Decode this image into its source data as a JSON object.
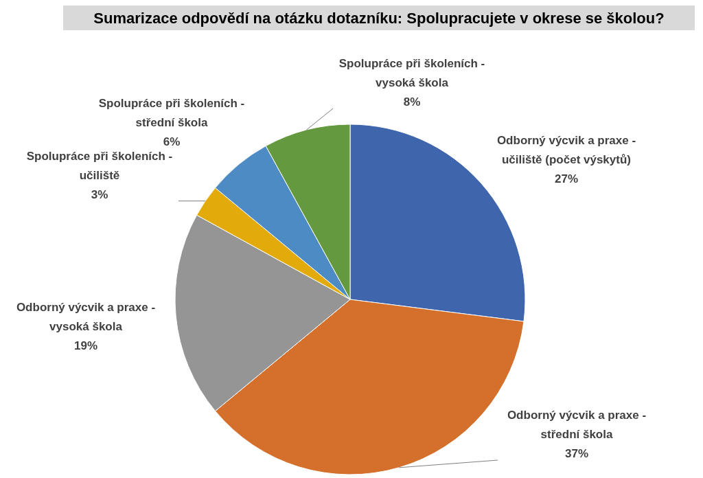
{
  "chart_data": {
    "type": "pie",
    "title": "Sumarizace odpovědí na otázku dotazníku: Spolupracujete v okrese se školou?",
    "categories": [
      "Odborný výcvik a praxe - učiliště (počet výskytů)",
      "Odborný výcvik a praxe - střední škola",
      "Odborný výcvik a praxe - vysoká škola",
      "Spolupráce při školeních - učiliště",
      "Spolupráce při školeních - střední škola",
      "Spolupráce při školeních - vysoká škola"
    ],
    "values": [
      27,
      37,
      19,
      3,
      6,
      8
    ],
    "value_labels": [
      "27%",
      "37%",
      "19%",
      "3%",
      "6%",
      "8%"
    ],
    "colors": [
      "#3f65ad",
      "#d4702b",
      "#959595",
      "#e3aa0c",
      "#4d8bc4",
      "#64993f"
    ]
  }
}
